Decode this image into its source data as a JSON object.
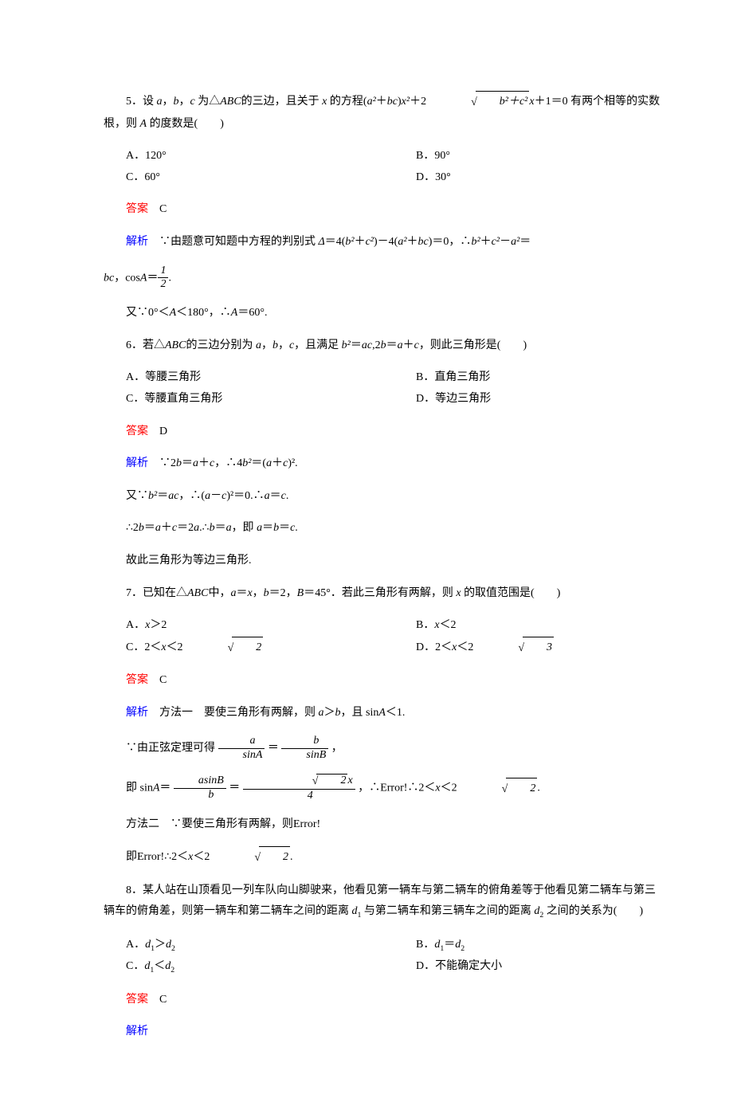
{
  "text_color": "#000000",
  "red": "#ff0000",
  "blue": "#0000ff",
  "background": "#ffffff",
  "q5": {
    "num": "5．",
    "stem_a": "设 ",
    "stem_b": "，",
    "stem_c": "，",
    "stem_d": " 为△",
    "stem_e": "的三边，且关于 ",
    "stem_f": " 的方程(",
    "stem_g": "＋",
    "stem_h": ")",
    "stem_i": "＋2",
    "stem_j": "＋1＝0 有两个相等的实数根，则 ",
    "stem_k": " 的度数是(　　)",
    "optA": "A．120°",
    "optB": "B．90°",
    "optC": "C．60°",
    "optD": "D．30°",
    "ans_label": "答案",
    "ans": "　C",
    "exp_label": "解析",
    "exp1_a": "　∵由题意可知题中方程的判别式 ",
    "exp1_b": "＝4(",
    "exp1_c": "＋",
    "exp1_d": ")－4(",
    "exp1_e": "＋",
    "exp1_f": ")＝0，∴",
    "exp1_g": "＋",
    "exp1_h": "－",
    "exp1_i": "＝",
    "exp2_a": "，cos",
    "exp2_b": "＝",
    "exp2_dot": ".",
    "exp3_a": "又∵0°＜",
    "exp3_b": "＜180°，∴",
    "exp3_c": "＝60°.",
    "var_a": "a",
    "var_b": "b",
    "var_c": "c",
    "var_x": "x",
    "var_ABC": "ABC",
    "var_A": "A",
    "var_bc": "bc",
    "var_Delta": "Δ",
    "sq_body": "b²＋c²",
    "frac1_num": "1",
    "frac1_den": "2"
  },
  "q6": {
    "num": "6．",
    "stem_a": "若△",
    "stem_b": "的三边分别为 ",
    "stem_c": "，",
    "stem_d": "，",
    "stem_e": "，且满足 ",
    "stem_f": "＝",
    "stem_g": ",2",
    "stem_h": "＝",
    "stem_i": "＋",
    "stem_j": "，则此三角形是(　　)",
    "optA": "A．等腰三角形",
    "optB": "B．直角三角形",
    "optC": "C．等腰直角三角形",
    "optD": "D．等边三角形",
    "ans_label": "答案",
    "ans": "　D",
    "exp_label": "解析",
    "e1_a": "　∵2",
    "e1_b": "＝",
    "e1_c": "＋",
    "e1_d": "，∴4",
    "e1_e": "＝(",
    "e1_f": "＋",
    "e1_g": ")².",
    "e2_a": "又∵",
    "e2_b": "＝",
    "e2_c": "，∴(",
    "e2_d": "－",
    "e2_e": ")²＝0.∴",
    "e2_f": "＝",
    "e2_g": ".",
    "e3_a": "∴2",
    "e3_b": "＝",
    "e3_c": "＋",
    "e3_d": "＝2",
    "e3_e": ".∴",
    "e3_f": "＝",
    "e3_g": "，即 ",
    "e3_h": "＝",
    "e3_i": "＝",
    "e3_j": ".",
    "e4": "故此三角形为等边三角形.",
    "var_a": "a",
    "var_b": "b",
    "var_c": "c",
    "var_ac": "ac",
    "var_ABC": "ABC"
  },
  "q7": {
    "num": "7．",
    "stem_a": "已知在△",
    "stem_b": "中，",
    "stem_c": "＝",
    "stem_d": "，",
    "stem_e": "＝2，",
    "stem_f": "＝45°．若此三角形有两解，则 ",
    "stem_g": " 的取值范围是(　　)",
    "optA_a": "A．",
    "optA_b": "＞2",
    "optB_a": "B．",
    "optB_b": "＜2",
    "optC_a": "C．2＜",
    "optC_b": "＜2",
    "optD_a": "D．2＜",
    "optD_b": "＜2",
    "ans_label": "答案",
    "ans": "　C",
    "exp_label": "解析",
    "e1_a": "　方法一　要使三角形有两解，则 ",
    "e1_b": "＞",
    "e1_c": "，且 sin",
    "e1_d": "＜1.",
    "e2_a": "∵由正弦定理可得",
    "e2_eq": "＝",
    "e2_end": "，",
    "frA_num_a": "a",
    "frA_den": "sinA",
    "frB_num_b": "b",
    "frB_den": "sinB",
    "e3_a": "即 sin",
    "e3_b": "＝",
    "e3_c": "＝",
    "e3_d": "，∴",
    "e3_err": "Error!",
    "e3_e": "∴2＜",
    "e3_f": "＜2",
    "e3_g": ".",
    "frC_num": "asinB",
    "frC_den": "b",
    "frD_num_pre": "",
    "frD_num_post": "x",
    "frD_den": "4",
    "e4_a": "方法二　∵要使三角形有两解，则",
    "e4_err": "Error!",
    "e5_a": "即",
    "e5_err": "Error!",
    "e5_b": "∴2＜",
    "e5_c": "＜2",
    "e5_d": ".",
    "var_a": "a",
    "var_b": "b",
    "var_x": "x",
    "var_A": "A",
    "var_B": "B",
    "var_ABC": "ABC",
    "sqrt2": "2",
    "sqrt3": "3"
  },
  "q8": {
    "num": "8．",
    "stem_a": "某人站在山顶看见一列车队向山脚驶来，他看见第一辆车与第二辆车的俯角差等于他看见第二辆车与第三辆车的俯角差，则第一辆车和第二辆车之间的距离 ",
    "stem_b": " 与第二辆车和第三辆车之间的距离 ",
    "stem_c": " 之间的关系为(　　)",
    "optA_a": "A．",
    "optA_b": "＞",
    "optB_a": "B．",
    "optB_b": "＝",
    "optC_a": "C．",
    "optC_b": "＜",
    "optD": "D．不能确定大小",
    "ans_label": "答案",
    "ans": "　C",
    "exp_label": "解析",
    "var_d": "d"
  }
}
